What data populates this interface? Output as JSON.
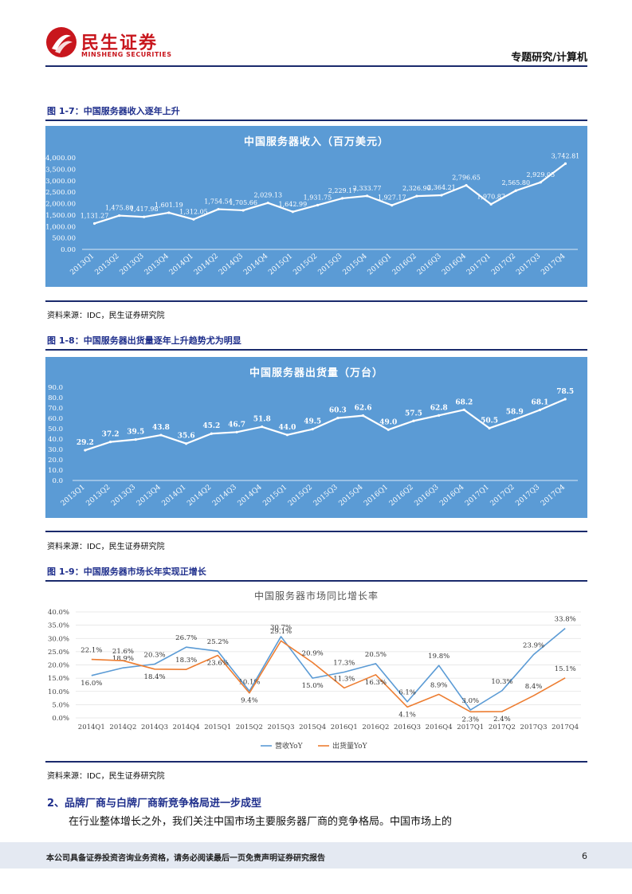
{
  "header": {
    "brand_cn": "民生证券",
    "brand_en": "MINSHENG SECURITIES",
    "section": "专题研究/计算机",
    "brand_color": "#c8161d"
  },
  "fig7": {
    "caption": "图 1-7：中国服务器收入逐年上升",
    "source": "资料来源：IDC，民生证券研究院"
  },
  "fig8": {
    "caption": "图 1-8：中国服务器出货量逐年上升趋势尤为明显",
    "source": "资料来源：IDC，民生证券研究院"
  },
  "fig9": {
    "caption": "图 1-9：中国服务器市场长年实现正增长",
    "source": "资料来源：IDC，民生证券研究院"
  },
  "chart_data": [
    {
      "type": "line",
      "title": "中国服务器收入（百万美元）",
      "categories": [
        "2013Q1",
        "2013Q2",
        "2013Q3",
        "2013Q4",
        "2014Q1",
        "2014Q2",
        "2014Q3",
        "2014Q4",
        "2015Q1",
        "2015Q2",
        "2015Q3",
        "2015Q4",
        "2016Q1",
        "2016Q2",
        "2016Q3",
        "2016Q4",
        "2017Q1",
        "2017Q2",
        "2017Q3",
        "2017Q4"
      ],
      "values": [
        1131.27,
        1475.8,
        1417.98,
        1601.19,
        1312.05,
        1754.54,
        1705.66,
        2029.13,
        1642.99,
        1931.75,
        2229.17,
        2333.77,
        1927.17,
        2326.9,
        2364.21,
        2796.65,
        1970.87,
        2565.8,
        2929.05,
        3742.81
      ],
      "labels": [
        "1,131.27",
        "1,475.80",
        "1,417.98",
        "1,601.19",
        "1,312.05",
        "1,754.54",
        "1,705.66",
        "2,029.13",
        "1,642.99",
        "1,931.75",
        "2,229.17",
        "2,333.77",
        "1,927.17",
        "2,326.90",
        "2,364.21",
        "2,796.65",
        "1,970.87",
        "2,565.80",
        "2,929.05",
        "3,742.81"
      ],
      "yticks": [
        "0.00",
        "500.00",
        "1,000.00",
        "1,500.00",
        "2,000.00",
        "2,500.00",
        "3,000.00",
        "3,500.00",
        "4,000.00"
      ],
      "ylim": [
        0,
        4000
      ],
      "background": "#5b9bd5"
    },
    {
      "type": "line",
      "title": "中国服务器出货量（万台）",
      "categories": [
        "2013Q1",
        "2013Q2",
        "2013Q3",
        "2013Q4",
        "2014Q1",
        "2014Q2",
        "2014Q3",
        "2014Q4",
        "2015Q1",
        "2015Q2",
        "2015Q3",
        "2015Q4",
        "2016Q1",
        "2016Q2",
        "2016Q3",
        "2016Q4",
        "2017Q1",
        "2017Q2",
        "2017Q3",
        "2017Q4"
      ],
      "values": [
        29.2,
        37.2,
        39.5,
        43.8,
        35.6,
        45.2,
        46.7,
        51.8,
        44.0,
        49.5,
        60.3,
        62.6,
        49.0,
        57.5,
        62.8,
        68.2,
        50.5,
        58.9,
        68.1,
        78.5
      ],
      "labels": [
        "29.2",
        "37.2",
        "39.5",
        "43.8",
        "35.6",
        "45.2",
        "46.7",
        "51.8",
        "44.0",
        "49.5",
        "60.3",
        "62.6",
        "49.0",
        "57.5",
        "62.8",
        "68.2",
        "50.5",
        "58.9",
        "68.1",
        "78.5"
      ],
      "yticks": [
        "0.0",
        "10.0",
        "20.0",
        "30.0",
        "40.0",
        "50.0",
        "60.0",
        "70.0",
        "80.0",
        "90.0"
      ],
      "ylim": [
        0,
        90
      ],
      "background": "#5b9bd5"
    },
    {
      "type": "line",
      "title": "中国服务器市场同比增长率",
      "categories": [
        "2014Q1",
        "2014Q2",
        "2014Q3",
        "2014Q4",
        "2015Q1",
        "2015Q2",
        "2015Q3",
        "2015Q4",
        "2016Q1",
        "2016Q2",
        "2016Q3",
        "2016Q4",
        "2017Q1",
        "2017Q2",
        "2017Q3",
        "2017Q4"
      ],
      "yticks": [
        "0.0%",
        "5.0%",
        "10.0%",
        "15.0%",
        "20.0%",
        "25.0%",
        "30.0%",
        "35.0%",
        "40.0%"
      ],
      "ylim": [
        0,
        40
      ],
      "series": [
        {
          "name": "营收YoY",
          "color": "#5b9bd5",
          "values": [
            16.0,
            18.9,
            20.3,
            26.7,
            25.2,
            10.1,
            30.7,
            15.0,
            17.3,
            20.5,
            6.1,
            19.8,
            3.0,
            10.3,
            23.9,
            33.8
          ],
          "labels": [
            "16.0%",
            "18.9%",
            "20.3%",
            "26.7%",
            "25.2%",
            "10.1%",
            "30.7%",
            "15.0%",
            "17.3%",
            "20.5%",
            "6.1%",
            "19.8%",
            "3.0%",
            "10.3%",
            "23.9%",
            "33.8%"
          ]
        },
        {
          "name": "出货量YoY",
          "color": "#ed7d31",
          "values": [
            22.1,
            21.6,
            18.4,
            18.3,
            23.6,
            9.4,
            29.1,
            20.9,
            11.3,
            16.3,
            4.1,
            8.9,
            2.3,
            2.4,
            8.4,
            15.1
          ],
          "labels": [
            "22.1%",
            "21.6%",
            "18.4%",
            "18.3%",
            "23.6%",
            "9.4%",
            "29.1%",
            "20.9%",
            "11.3%",
            "16.3%",
            "4.1%",
            "8.9%",
            "2.3%",
            "2.4%",
            "8.4%",
            "15.1%"
          ]
        }
      ]
    }
  ],
  "section2": {
    "title": "2、品牌厂商与白牌厂商新竞争格局进一步成型",
    "paragraph": "在行业整体增长之外，我们关注中国市场主要服务器厂商的竞争格局。中国市场上的"
  },
  "footer": {
    "disclaimer": "本公司具备证券投资咨询业务资格，请务必阅读最后一页免责声明证券研究报告",
    "page": "6"
  }
}
